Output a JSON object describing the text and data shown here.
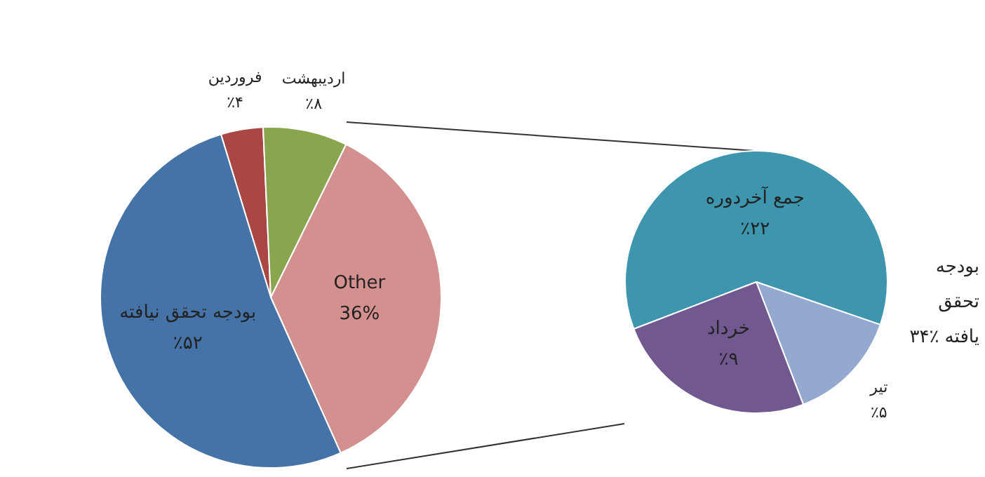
{
  "chart_data": [
    {
      "type": "pie",
      "categories": [
        "فروردین",
        "اردیبهشت",
        "Other",
        "بودجه تحقق نیافته"
      ],
      "values": [
        4,
        8,
        36,
        52
      ],
      "colors": [
        "#aa4643",
        "#89a54e",
        "#d4908e",
        "#4572a7"
      ],
      "value_labels": [
        "٪۴",
        "٪۸",
        "36%",
        "٪۵۲"
      ],
      "legend": false
    },
    {
      "type": "pie",
      "categories": [
        "جمع آخردوره",
        "تیر",
        "خرداد"
      ],
      "values": [
        22,
        5,
        9
      ],
      "colors": [
        "#3d96ae",
        "#93a9cf",
        "#71588f"
      ],
      "value_labels": [
        "٪۲۲",
        "٪۵",
        "٪۹"
      ],
      "legend": false,
      "annotations": [
        "بودجه تحقق یافته ٪۳۴"
      ]
    }
  ]
}
